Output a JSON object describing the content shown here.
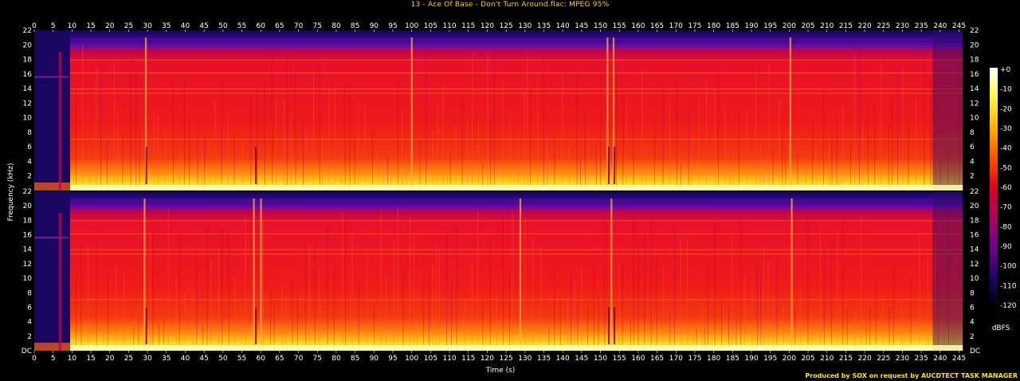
{
  "title": "13 - Ace Of Base - Don't Turn Around.flac: MPEG 95%",
  "footer": "Produced by SOX on request by AUCDTECT TASK MANAGER",
  "chart_data": {
    "type": "heatmap",
    "xlabel": "Time (s)",
    "ylabel": "Frequency (kHz)",
    "colorbar_label": "dBFS",
    "xlim": [
      0,
      247
    ],
    "ylim": [
      0,
      22
    ],
    "x_ticks": [
      "0",
      "5",
      "10",
      "15",
      "20",
      "25",
      "30",
      "35",
      "40",
      "45",
      "50",
      "55",
      "60",
      "65",
      "70",
      "75",
      "80",
      "85",
      "90",
      "95",
      "100",
      "105",
      "110",
      "115",
      "120",
      "125",
      "130",
      "135",
      "140",
      "145",
      "150",
      "155",
      "160",
      "165",
      "170",
      "175",
      "180",
      "185",
      "190",
      "195",
      "200",
      "205",
      "210",
      "215",
      "220",
      "225",
      "230",
      "235",
      "240",
      "245"
    ],
    "y_ticks_top": [
      "22",
      "20",
      "18",
      "16",
      "14",
      "12",
      "10",
      "8",
      "6",
      "4",
      "2"
    ],
    "y_ticks_bottom": [
      "22",
      "20",
      "18",
      "16",
      "14",
      "12",
      "10",
      "8",
      "6",
      "4",
      "2",
      "DC"
    ],
    "colorbar_ticks": [
      "+0",
      "-10",
      "-20",
      "-30",
      "-40",
      "-50",
      "-60",
      "-70",
      "-80",
      "-90",
      "-100",
      "-110",
      "-120"
    ],
    "channels": 2,
    "cutoff_khz": 20.5,
    "music_start_s": 9.5,
    "music_end_s": 246,
    "colors": {
      "high": "#ffffff",
      "upper": "#ffe000",
      "mid": "#ff1010",
      "low": "#a00060",
      "floor": "#1a0060",
      "silence": "#000000"
    }
  }
}
